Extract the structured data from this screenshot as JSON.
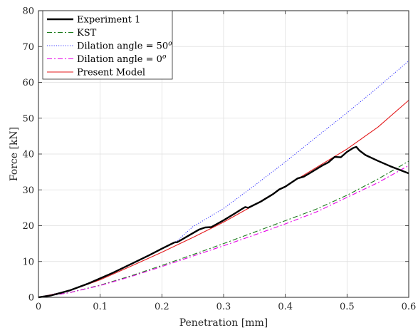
{
  "chart_data": {
    "type": "line",
    "xlabel": "Penetration [mm]",
    "ylabel": "Force [kN]",
    "xlim": [
      0,
      0.6
    ],
    "ylim": [
      0,
      80
    ],
    "xticks": [
      0,
      0.1,
      0.2,
      0.3,
      0.4,
      0.5,
      0.6
    ],
    "yticks": [
      0,
      10,
      20,
      30,
      40,
      50,
      60,
      70,
      80
    ],
    "xtick_labels": [
      "0",
      "0.1",
      "0.2",
      "0.3",
      "0.4",
      "0.5",
      "0.6"
    ],
    "ytick_labels": [
      "0",
      "10",
      "20",
      "30",
      "40",
      "50",
      "60",
      "70",
      "80"
    ],
    "grid": true,
    "legend_position": "top-left",
    "series": [
      {
        "name": "Experiment 1",
        "color": "#000000",
        "dash": "solid",
        "width": 2.4,
        "x": [
          0,
          0.02,
          0.05,
          0.08,
          0.1,
          0.12,
          0.15,
          0.18,
          0.2,
          0.22,
          0.225,
          0.24,
          0.26,
          0.27,
          0.28,
          0.3,
          0.32,
          0.33,
          0.335,
          0.34,
          0.36,
          0.38,
          0.39,
          0.4,
          0.42,
          0.43,
          0.44,
          0.46,
          0.47,
          0.48,
          0.49,
          0.5,
          0.51,
          0.515,
          0.52,
          0.53,
          0.55,
          0.57,
          0.6
        ],
        "y": [
          0,
          0.5,
          1.9,
          3.8,
          5.3,
          6.8,
          9.3,
          11.8,
          13.6,
          15.3,
          15.4,
          16.9,
          18.9,
          19.5,
          19.6,
          21.5,
          23.6,
          24.7,
          25.2,
          25,
          26.7,
          28.8,
          30.1,
          30.9,
          33.2,
          33.7,
          34.7,
          36.8,
          37.7,
          39.2,
          39.1,
          40.6,
          41.7,
          42,
          41,
          39.7,
          38.1,
          36.6,
          34.6
        ]
      },
      {
        "name": "KST",
        "color": "#1a7a1a",
        "dash": "dashdot",
        "width": 1.1,
        "x": [
          0,
          0.05,
          0.1,
          0.15,
          0.2,
          0.25,
          0.3,
          0.35,
          0.4,
          0.45,
          0.5,
          0.55,
          0.6
        ],
        "y": [
          0,
          1.3,
          3.4,
          6,
          8.9,
          11.9,
          15,
          18.2,
          21.4,
          24.6,
          28.5,
          33,
          38
        ]
      },
      {
        "name": "Dilation angle = 50",
        "name_superscript": "o",
        "color": "#3a3aff",
        "dash": "dotted",
        "width": 1.1,
        "x": [
          0,
          0.05,
          0.1,
          0.15,
          0.2,
          0.225,
          0.25,
          0.3,
          0.35,
          0.4,
          0.45,
          0.5,
          0.55,
          0.6
        ],
        "y": [
          0,
          1.9,
          5.3,
          9.4,
          13.6,
          15.8,
          19.7,
          24.8,
          31.2,
          37.8,
          44.7,
          51.5,
          58.6,
          66
        ]
      },
      {
        "name": "Dilation angle = 0",
        "name_superscript": "o",
        "color": "#e600e6",
        "dash": "dashdot",
        "width": 1.1,
        "x": [
          0,
          0.05,
          0.1,
          0.15,
          0.2,
          0.25,
          0.3,
          0.35,
          0.4,
          0.45,
          0.5,
          0.55,
          0.6
        ],
        "y": [
          0,
          1.3,
          3.3,
          5.8,
          8.6,
          11.5,
          14.4,
          17.4,
          20.5,
          23.8,
          27.9,
          32,
          36.8
        ]
      },
      {
        "name": "Present Model",
        "color": "#e31a1c",
        "dash": "solid",
        "width": 1.1,
        "x": [
          0,
          0.05,
          0.1,
          0.15,
          0.2,
          0.25,
          0.3,
          0.35,
          0.4,
          0.45,
          0.5,
          0.55,
          0.6
        ],
        "y": [
          0,
          1.8,
          4.9,
          8.7,
          12.6,
          16.7,
          21,
          25.8,
          31,
          36.2,
          41.4,
          47.5,
          55
        ]
      }
    ]
  }
}
